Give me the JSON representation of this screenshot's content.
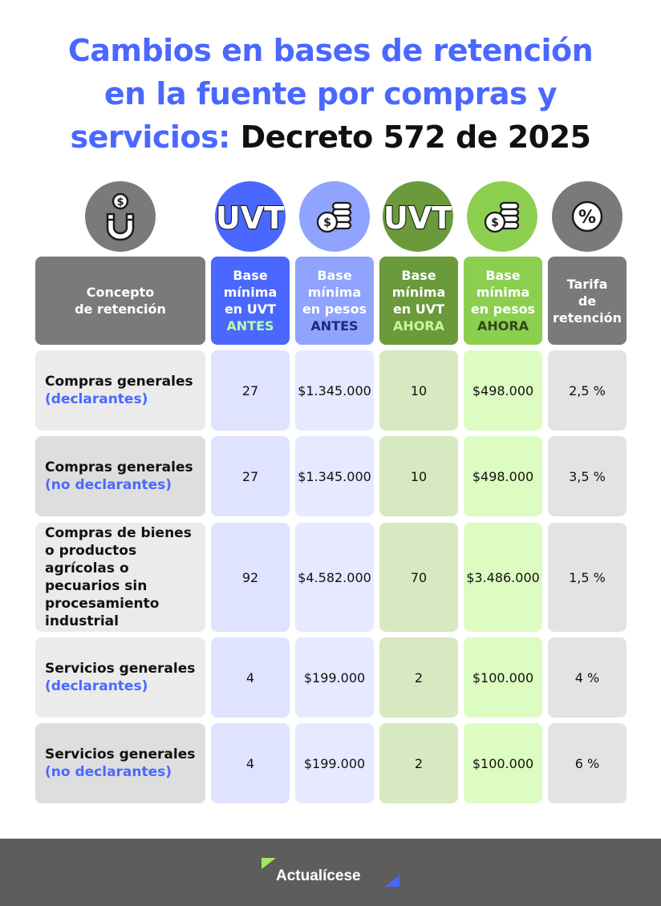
{
  "title": {
    "line1": "Cambios en bases de retención",
    "line2": "en la fuente por compras y",
    "line3_blue": "servicios:",
    "line3_black": "Decreto 572 de 2025"
  },
  "icons": {
    "uvt_label": "UVT",
    "percent_label": "%",
    "dollar_label": "$"
  },
  "headers": {
    "concepto": [
      "Concepto",
      "de retención"
    ],
    "uvt_antes": [
      "Base",
      "mínima",
      "en UVT",
      "ANTES"
    ],
    "pesos_antes": [
      "Base",
      "mínima",
      "en pesos",
      "ANTES"
    ],
    "uvt_ahora": [
      "Base",
      "mínima",
      "en UVT",
      "AHORA"
    ],
    "pesos_ahora": [
      "Base",
      "mínima",
      "en pesos",
      "AHORA"
    ],
    "tarifa": [
      "Tarifa",
      "de",
      "retención"
    ]
  },
  "rows": [
    {
      "concept": "Compras generales",
      "qualifier": "(declarantes)",
      "uvt_antes": "27",
      "pesos_antes": "$1.345.000",
      "uvt_ahora": "10",
      "pesos_ahora": "$498.000",
      "tarifa": "2,5 %"
    },
    {
      "concept": "Compras generales",
      "qualifier": "(no declarantes)",
      "uvt_antes": "27",
      "pesos_antes": "$1.345.000",
      "uvt_ahora": "10",
      "pesos_ahora": "$498.000",
      "tarifa": "3,5 %"
    },
    {
      "concept": "Compras de bienes o productos agrícolas o pecuarios sin procesamiento industrial",
      "qualifier": "",
      "uvt_antes": "92",
      "pesos_antes": "$4.582.000",
      "uvt_ahora": "70",
      "pesos_ahora": "$3.486.000",
      "tarifa": "1,5 %"
    },
    {
      "concept": "Servicios generales",
      "qualifier": "(declarantes)",
      "uvt_antes": "4",
      "pesos_antes": "$199.000",
      "uvt_ahora": "2",
      "pesos_ahora": "$100.000",
      "tarifa": "4 %"
    },
    {
      "concept": "Servicios generales",
      "qualifier": "(no declarantes)",
      "uvt_antes": "4",
      "pesos_antes": "$199.000",
      "uvt_ahora": "2",
      "pesos_ahora": "$100.000",
      "tarifa": "6 %"
    }
  ],
  "colors": {
    "title_blue": "#4a68ff",
    "antes_uvt_head": "#4a68ff",
    "antes_pesos_head": "#8fa3ff",
    "ahora_uvt_head": "#6a9a3a",
    "ahora_pesos_head": "#8ccf4f",
    "gray_head": "#7a7a7a",
    "antes_label_light": "#b6ffa8",
    "antes_label_dark": "#1c2a7a",
    "ahora_label_light": "#c8f7a0",
    "ahora_label_dark": "#2e4a16"
  },
  "footer": {
    "brand": "Actualícese"
  }
}
